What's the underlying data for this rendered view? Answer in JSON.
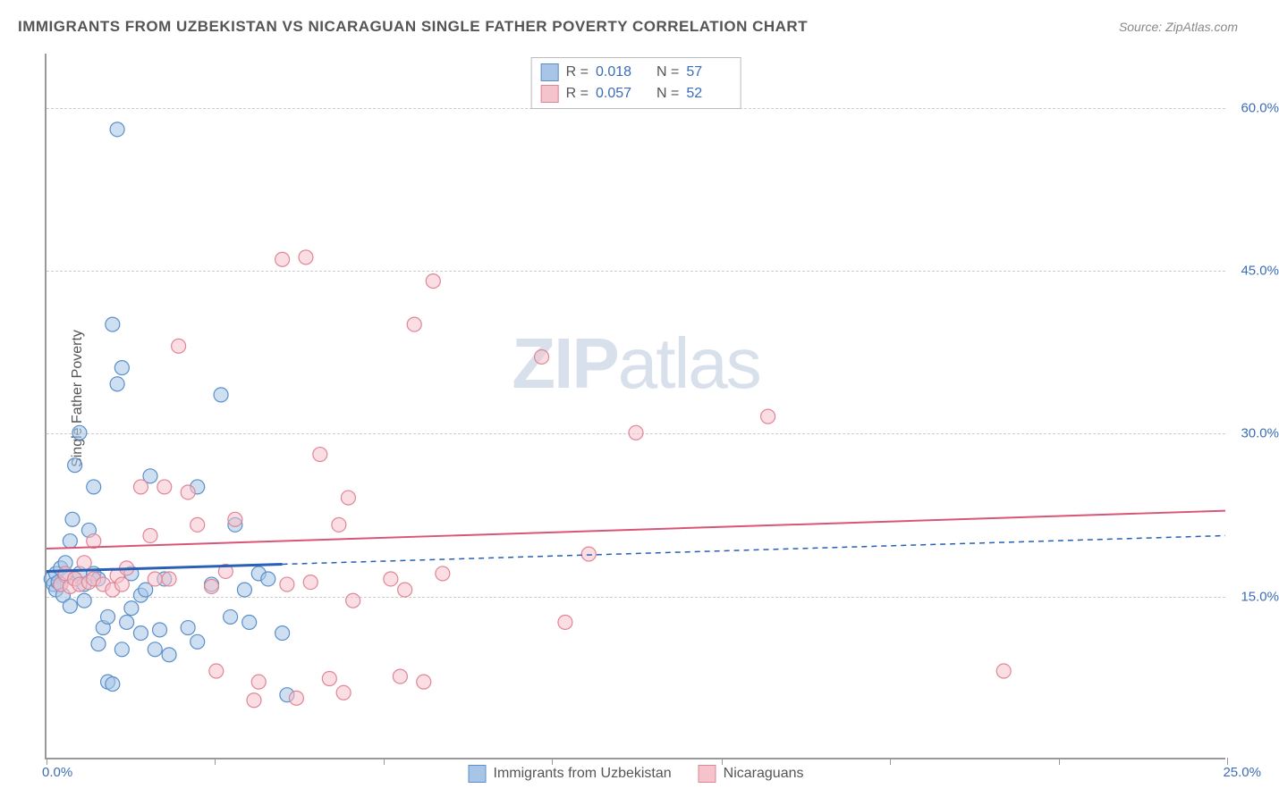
{
  "title": "IMMIGRANTS FROM UZBEKISTAN VS NICARAGUAN SINGLE FATHER POVERTY CORRELATION CHART",
  "source": "Source: ZipAtlas.com",
  "ylabel": "Single Father Poverty",
  "watermark_a": "ZIP",
  "watermark_b": "atlas",
  "chart": {
    "type": "scatter",
    "xlim": [
      0,
      25
    ],
    "ylim": [
      0,
      65
    ],
    "xtick_labels": {
      "min": "0.0%",
      "max": "25.0%"
    },
    "xtick_positions": [
      0,
      3.57,
      7.14,
      10.71,
      14.29,
      17.86,
      21.43,
      25
    ],
    "ytick_positions": [
      15,
      30,
      45,
      60
    ],
    "ytick_labels": [
      "15.0%",
      "30.0%",
      "45.0%",
      "60.0%"
    ],
    "background_color": "#ffffff",
    "grid_color": "#cccccc",
    "marker_radius": 8,
    "marker_opacity": 0.55,
    "series": [
      {
        "id": "uzbekistan",
        "label": "Immigrants from Uzbekistan",
        "color_fill": "#a8c5e8",
        "color_stroke": "#5a8fc9",
        "R": "0.018",
        "N": "57",
        "trend": {
          "y1": 17.2,
          "y2": 20.5,
          "solid_until_x": 5,
          "color": "#2960b5",
          "width": 2,
          "dash": "6 5"
        },
        "points": [
          [
            0.1,
            16.5
          ],
          [
            0.15,
            16
          ],
          [
            0.2,
            17
          ],
          [
            0.2,
            15.5
          ],
          [
            0.25,
            16.2
          ],
          [
            0.3,
            17.5
          ],
          [
            0.3,
            16
          ],
          [
            0.35,
            15
          ],
          [
            0.4,
            16.8
          ],
          [
            0.4,
            18
          ],
          [
            0.5,
            20
          ],
          [
            0.5,
            14
          ],
          [
            0.55,
            22
          ],
          [
            0.6,
            16.5
          ],
          [
            0.6,
            27
          ],
          [
            0.7,
            30
          ],
          [
            0.7,
            17
          ],
          [
            0.8,
            16
          ],
          [
            0.8,
            14.5
          ],
          [
            0.9,
            21
          ],
          [
            1.0,
            17
          ],
          [
            1.0,
            25
          ],
          [
            1.1,
            16.5
          ],
          [
            1.1,
            10.5
          ],
          [
            1.2,
            12
          ],
          [
            1.3,
            13
          ],
          [
            1.3,
            7
          ],
          [
            1.4,
            6.8
          ],
          [
            1.4,
            40
          ],
          [
            1.5,
            58
          ],
          [
            1.5,
            34.5
          ],
          [
            1.6,
            10
          ],
          [
            1.6,
            36
          ],
          [
            1.7,
            12.5
          ],
          [
            1.8,
            13.8
          ],
          [
            1.8,
            17
          ],
          [
            2.0,
            15
          ],
          [
            2.0,
            11.5
          ],
          [
            2.1,
            15.5
          ],
          [
            2.2,
            26
          ],
          [
            2.3,
            10
          ],
          [
            2.4,
            11.8
          ],
          [
            2.5,
            16.5
          ],
          [
            2.6,
            9.5
          ],
          [
            3.0,
            12
          ],
          [
            3.2,
            25
          ],
          [
            3.2,
            10.7
          ],
          [
            3.5,
            16
          ],
          [
            3.7,
            33.5
          ],
          [
            3.9,
            13
          ],
          [
            4.0,
            21.5
          ],
          [
            4.2,
            15.5
          ],
          [
            4.3,
            12.5
          ],
          [
            4.5,
            17
          ],
          [
            4.7,
            16.5
          ],
          [
            5.0,
            11.5
          ],
          [
            5.1,
            5.8
          ]
        ]
      },
      {
        "id": "nicaraguans",
        "label": "Nicaraguans",
        "color_fill": "#f5c3cc",
        "color_stroke": "#e08595",
        "R": "0.057",
        "N": "52",
        "trend": {
          "y1": 19.3,
          "y2": 22.8,
          "solid_until_x": 25,
          "color": "#d95577",
          "width": 2,
          "dash": "none"
        },
        "points": [
          [
            0.3,
            16
          ],
          [
            0.4,
            17
          ],
          [
            0.5,
            15.8
          ],
          [
            0.6,
            16.5
          ],
          [
            0.7,
            16
          ],
          [
            0.8,
            18
          ],
          [
            0.9,
            16.2
          ],
          [
            1.0,
            20
          ],
          [
            1.0,
            16.5
          ],
          [
            1.2,
            16
          ],
          [
            1.4,
            15.5
          ],
          [
            1.5,
            16.8
          ],
          [
            1.6,
            16
          ],
          [
            1.7,
            17.5
          ],
          [
            2.0,
            25
          ],
          [
            2.2,
            20.5
          ],
          [
            2.3,
            16.5
          ],
          [
            2.5,
            25
          ],
          [
            2.6,
            16.5
          ],
          [
            2.8,
            38
          ],
          [
            3.0,
            24.5
          ],
          [
            3.2,
            21.5
          ],
          [
            3.5,
            15.8
          ],
          [
            3.6,
            8
          ],
          [
            3.8,
            17.2
          ],
          [
            4.0,
            22
          ],
          [
            4.4,
            5.3
          ],
          [
            4.5,
            7
          ],
          [
            5.0,
            46
          ],
          [
            5.1,
            16
          ],
          [
            5.3,
            5.5
          ],
          [
            5.5,
            46.2
          ],
          [
            5.6,
            16.2
          ],
          [
            5.8,
            28
          ],
          [
            6.0,
            7.3
          ],
          [
            6.2,
            21.5
          ],
          [
            6.3,
            6
          ],
          [
            6.4,
            24
          ],
          [
            6.5,
            14.5
          ],
          [
            7.3,
            16.5
          ],
          [
            7.5,
            7.5
          ],
          [
            7.6,
            15.5
          ],
          [
            7.8,
            40
          ],
          [
            8.0,
            7
          ],
          [
            8.2,
            44
          ],
          [
            8.4,
            17
          ],
          [
            10.5,
            37
          ],
          [
            11.0,
            12.5
          ],
          [
            11.5,
            18.8
          ],
          [
            12.5,
            30
          ],
          [
            15.3,
            31.5
          ],
          [
            20.3,
            8
          ]
        ]
      }
    ]
  },
  "legend_top": {
    "r_label": "R  =",
    "n_label": "N  ="
  }
}
